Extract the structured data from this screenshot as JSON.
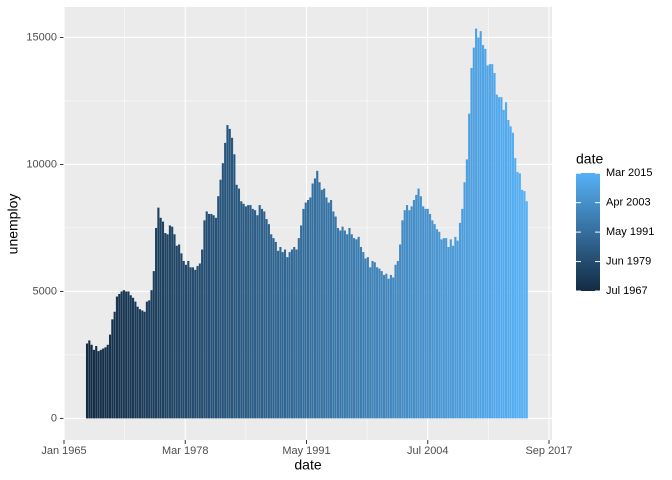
{
  "chart_data": {
    "type": "bar",
    "x_label": "date",
    "y_label": "unemploy",
    "legend_title": "date",
    "color_low": "#132B43",
    "color_high": "#56B1F7",
    "grid": true,
    "xlim": [
      "1965-01",
      "2017-09"
    ],
    "xticks": [
      {
        "value": "1965-01",
        "label": "Jan 1965"
      },
      {
        "value": "1978-03",
        "label": "Mar 1978"
      },
      {
        "value": "1991-05",
        "label": "May 1991"
      },
      {
        "value": "2004-07",
        "label": "Jul 2004"
      },
      {
        "value": "2017-09",
        "label": "Sep 2017"
      }
    ],
    "ylim": [
      -850,
      16200
    ],
    "yticks": [
      0,
      5000,
      10000,
      15000
    ],
    "legend_ticks": [
      {
        "value": "1967-07",
        "label": "Jul 1967"
      },
      {
        "value": "1979-06",
        "label": "Jun 1979"
      },
      {
        "value": "1991-05",
        "label": "May 1991"
      },
      {
        "value": "2003-04",
        "label": "Apr 2003"
      },
      {
        "value": "2015-03",
        "label": "Mar 2015"
      }
    ],
    "x": [
      "1967-07",
      "1967-10",
      "1968-01",
      "1968-04",
      "1968-07",
      "1968-10",
      "1969-01",
      "1969-04",
      "1969-07",
      "1969-10",
      "1970-01",
      "1970-04",
      "1970-07",
      "1970-10",
      "1971-01",
      "1971-04",
      "1971-07",
      "1971-10",
      "1972-01",
      "1972-04",
      "1972-07",
      "1972-10",
      "1973-01",
      "1973-04",
      "1973-07",
      "1973-10",
      "1974-01",
      "1974-04",
      "1974-07",
      "1974-10",
      "1975-01",
      "1975-04",
      "1975-07",
      "1975-10",
      "1976-01",
      "1976-04",
      "1976-07",
      "1976-10",
      "1977-01",
      "1977-04",
      "1977-07",
      "1977-10",
      "1978-01",
      "1978-04",
      "1978-07",
      "1978-10",
      "1979-01",
      "1979-04",
      "1979-07",
      "1979-10",
      "1980-01",
      "1980-04",
      "1980-07",
      "1980-10",
      "1981-01",
      "1981-04",
      "1981-07",
      "1981-10",
      "1982-01",
      "1982-04",
      "1982-07",
      "1982-10",
      "1983-01",
      "1983-04",
      "1983-07",
      "1983-10",
      "1984-01",
      "1984-04",
      "1984-07",
      "1984-10",
      "1985-01",
      "1985-04",
      "1985-07",
      "1985-10",
      "1986-01",
      "1986-04",
      "1986-07",
      "1986-10",
      "1987-01",
      "1987-04",
      "1987-07",
      "1987-10",
      "1988-01",
      "1988-04",
      "1988-07",
      "1988-10",
      "1989-01",
      "1989-04",
      "1989-07",
      "1989-10",
      "1990-01",
      "1990-04",
      "1990-07",
      "1990-10",
      "1991-01",
      "1991-04",
      "1991-07",
      "1991-10",
      "1992-01",
      "1992-04",
      "1992-07",
      "1992-10",
      "1993-01",
      "1993-04",
      "1993-07",
      "1993-10",
      "1994-01",
      "1994-04",
      "1994-07",
      "1994-10",
      "1995-01",
      "1995-04",
      "1995-07",
      "1995-10",
      "1996-01",
      "1996-04",
      "1996-07",
      "1996-10",
      "1997-01",
      "1997-04",
      "1997-07",
      "1997-10",
      "1998-01",
      "1998-04",
      "1998-07",
      "1998-10",
      "1999-01",
      "1999-04",
      "1999-07",
      "1999-10",
      "2000-01",
      "2000-04",
      "2000-07",
      "2000-10",
      "2001-01",
      "2001-04",
      "2001-07",
      "2001-10",
      "2002-01",
      "2002-04",
      "2002-07",
      "2002-10",
      "2003-01",
      "2003-04",
      "2003-07",
      "2003-10",
      "2004-01",
      "2004-04",
      "2004-07",
      "2004-10",
      "2005-01",
      "2005-04",
      "2005-07",
      "2005-10",
      "2006-01",
      "2006-04",
      "2006-07",
      "2006-10",
      "2007-01",
      "2007-04",
      "2007-07",
      "2007-10",
      "2008-01",
      "2008-04",
      "2008-07",
      "2008-10",
      "2009-01",
      "2009-04",
      "2009-07",
      "2009-10",
      "2010-01",
      "2010-04",
      "2010-07",
      "2010-10",
      "2011-01",
      "2011-04",
      "2011-07",
      "2011-10",
      "2012-01",
      "2012-04",
      "2012-07",
      "2012-10",
      "2013-01",
      "2013-04",
      "2013-07",
      "2013-10",
      "2014-01",
      "2014-04",
      "2014-07",
      "2014-10",
      "2015-01",
      "2015-04"
    ],
    "values": [
      2950,
      3070,
      2900,
      2700,
      2850,
      2650,
      2700,
      2750,
      2800,
      2900,
      3300,
      3900,
      4200,
      4800,
      4900,
      5000,
      5050,
      5000,
      5000,
      4850,
      4750,
      4600,
      4400,
      4300,
      4250,
      4200,
      4600,
      4650,
      5050,
      5800,
      7500,
      8300,
      7900,
      7750,
      7300,
      7250,
      7600,
      7550,
      7250,
      6800,
      6850,
      6500,
      6200,
      6050,
      6200,
      5950,
      5950,
      5850,
      6000,
      6100,
      6650,
      7800,
      8150,
      8050,
      8050,
      8000,
      7900,
      8750,
      9400,
      10050,
      10850,
      11550,
      11400,
      11050,
      10400,
      9200,
      9050,
      8550,
      8450,
      8350,
      8400,
      8400,
      8250,
      8200,
      8000,
      8400,
      8250,
      8150,
      7850,
      7650,
      7250,
      7100,
      6950,
      6600,
      6750,
      6550,
      6650,
      6350,
      6550,
      6650,
      6750,
      6650,
      7100,
      7600,
      8250,
      8500,
      8600,
      8700,
      9250,
      9450,
      9750,
      9300,
      9000,
      9050,
      8700,
      8500,
      8600,
      8150,
      7950,
      7500,
      7400,
      7550,
      7400,
      7250,
      7500,
      7250,
      7100,
      7050,
      7150,
      6750,
      6550,
      6300,
      6350,
      5950,
      6200,
      6150,
      5950,
      5900,
      5800,
      5650,
      5700,
      5500,
      5650,
      5550,
      6050,
      6200,
      6850,
      7800,
      8200,
      8400,
      8200,
      8350,
      8600,
      8800,
      9050,
      8750,
      8350,
      8250,
      8250,
      8050,
      7800,
      7650,
      7450,
      7350,
      7050,
      7100,
      7100,
      6750,
      7050,
      6800,
      7150,
      7000,
      7700,
      8250,
      9300,
      10200,
      12000,
      13800,
      14600,
      15350,
      15000,
      15250,
      14700,
      14550,
      13900,
      13950,
      13950,
      13600,
      12750,
      12650,
      12650,
      12150,
      12450,
      11750,
      11500,
      11250,
      10250,
      9700,
      9650,
      9000,
      8950,
      8550
    ]
  }
}
